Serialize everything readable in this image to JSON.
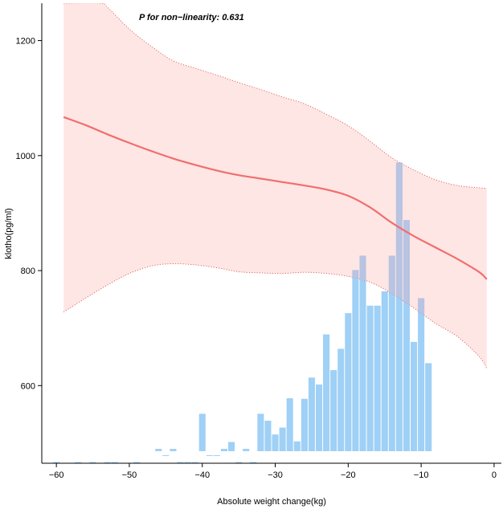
{
  "chart_data": {
    "type": "line",
    "subtype": "restricted cubic spline with confidence band and distribution histogram",
    "xlabel": "Absolute weight change(kg)",
    "ylabel": "klotho(pg/ml)",
    "annotation": "P for non−linearity: 0.631",
    "xlim": [
      -62,
      1
    ],
    "ylim": [
      465,
      1265
    ],
    "x_ticks": [
      -60,
      -50,
      -40,
      -30,
      -20,
      -10,
      0
    ],
    "x_tick_labels": [
      "−60",
      "−50",
      "−40",
      "−30",
      "−20",
      "−10",
      "0"
    ],
    "y_ticks": [
      600,
      800,
      1000,
      1200
    ],
    "y_tick_labels": [
      "600",
      "800",
      "1000",
      "1200"
    ],
    "grid": false,
    "colors": {
      "line": "#f26d6d",
      "band_fill": "#fde2df",
      "band_border": "#e05a5a",
      "histogram": "#9fd0f6",
      "histogram_overlap": "#b9c3e2"
    },
    "series": [
      {
        "role": "estimate",
        "x": [
          -59,
          -56,
          -53,
          -50,
          -47,
          -44,
          -41,
          -38,
          -35,
          -32,
          -29,
          -26,
          -23,
          -20,
          -17,
          -14,
          -11,
          -8,
          -5,
          -2,
          -1
        ],
        "y": [
          1067,
          1053,
          1037,
          1022,
          1008,
          995,
          984,
          974,
          966,
          960,
          954,
          948,
          941,
          930,
          910,
          883,
          860,
          840,
          820,
          797,
          785
        ]
      },
      {
        "role": "upper_ci",
        "x": [
          -59,
          -54,
          -53,
          -50,
          -47,
          -44,
          -41,
          -38,
          -35,
          -32,
          -29,
          -26,
          -23,
          -20,
          -17,
          -14,
          -11,
          -8,
          -5,
          -2,
          -1
        ],
        "y": [
          1265,
          1265,
          1258,
          1220,
          1190,
          1165,
          1152,
          1140,
          1127,
          1115,
          1102,
          1090,
          1072,
          1052,
          1025,
          996,
          975,
          958,
          948,
          944,
          943
        ]
      },
      {
        "role": "lower_ci",
        "x": [
          -59,
          -56,
          -53,
          -50,
          -47,
          -44,
          -41,
          -38,
          -35,
          -32,
          -29,
          -26,
          -23,
          -20,
          -17,
          -14,
          -11,
          -8,
          -5,
          -2,
          -1
        ],
        "y": [
          728,
          752,
          775,
          795,
          808,
          812,
          810,
          805,
          798,
          796,
          795,
          797,
          795,
          790,
          780,
          760,
          735,
          708,
          685,
          650,
          630
        ]
      }
    ],
    "histogram": {
      "bin_width": 1,
      "bins": [
        [
          -60,
          467
        ],
        [
          -57,
          467
        ],
        [
          -55,
          467
        ],
        [
          -53,
          467
        ],
        [
          -52,
          467
        ],
        [
          -49,
          467
        ],
        [
          -46,
          490
        ],
        [
          -45,
          479
        ],
        [
          -44,
          490
        ],
        [
          -43,
          467
        ],
        [
          -42,
          467
        ],
        [
          -41,
          467
        ],
        [
          -40,
          551
        ],
        [
          -39,
          479
        ],
        [
          -38,
          479
        ],
        [
          -37,
          490
        ],
        [
          -36,
          502
        ],
        [
          -35,
          467
        ],
        [
          -34,
          490
        ],
        [
          -33,
          467
        ],
        [
          -32,
          551
        ],
        [
          -31,
          539
        ],
        [
          -30,
          515
        ],
        [
          -29,
          527
        ],
        [
          -28,
          578
        ],
        [
          -27,
          503
        ],
        [
          -26,
          577
        ],
        [
          -25,
          614
        ],
        [
          -24,
          602
        ],
        [
          -23,
          689
        ],
        [
          -22,
          627
        ],
        [
          -21,
          664
        ],
        [
          -20,
          726
        ],
        [
          -19,
          801
        ],
        [
          -18,
          826
        ],
        [
          -17,
          739
        ],
        [
          -16,
          739
        ],
        [
          -15,
          764
        ],
        [
          -14,
          826
        ],
        [
          -13,
          988
        ],
        [
          -12,
          888
        ],
        [
          -11,
          676
        ],
        [
          -10,
          752
        ],
        [
          -9,
          639
        ]
      ]
    }
  }
}
